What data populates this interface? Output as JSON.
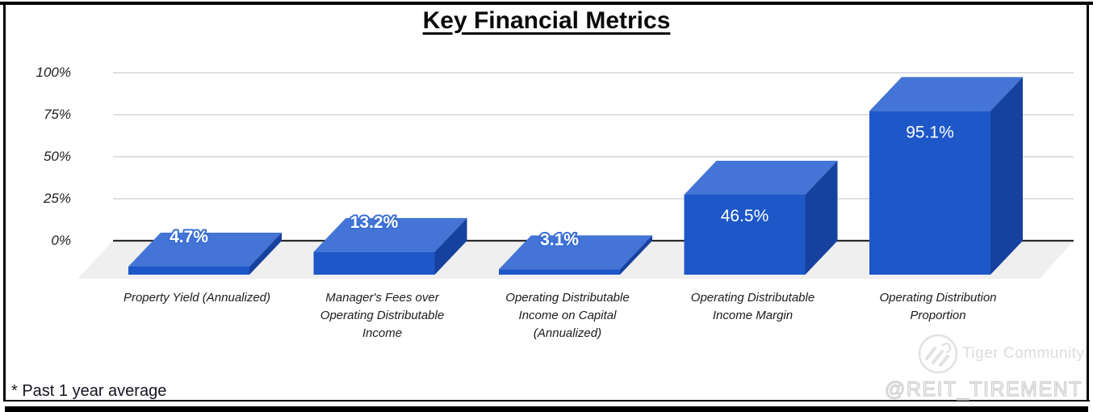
{
  "chart_data": {
    "type": "bar",
    "style": "3d-column",
    "title": "Key Financial Metrics",
    "categories": [
      "Property Yield (Annualized)",
      "Manager's Fees over Operating Distributable Income",
      "Operating Distributable Income on Capital (Annualized)",
      "Operating Distributable Income Margin",
      "Operating Distribution Proportion"
    ],
    "values": [
      4.7,
      13.2,
      3.1,
      46.5,
      95.1
    ],
    "value_labels": [
      "4.7%",
      "13.2%",
      "3.1%",
      "46.5%",
      "95.1%"
    ],
    "ylim": [
      0,
      100
    ],
    "yticks": [
      0,
      25,
      50,
      75,
      100
    ],
    "ytick_labels": [
      "0%",
      "25%",
      "50%",
      "75%",
      "100%"
    ],
    "grid": true,
    "legend": false,
    "colors": {
      "bar_front": "#1e57c8",
      "bar_top": "#4474d6",
      "bar_side": "#16419f",
      "floor": "#efefef",
      "gridline": "#d6d6d6",
      "axis_line": "#2b2b2b",
      "value_label_text": "#ffffff",
      "value_label_outline": "#3b6fd3"
    }
  },
  "footnote": "* Past 1 year average",
  "watermark": {
    "logo": "tiger-logo",
    "brand": "Tiger Community",
    "handle": "@REIT_TIREMENT"
  }
}
